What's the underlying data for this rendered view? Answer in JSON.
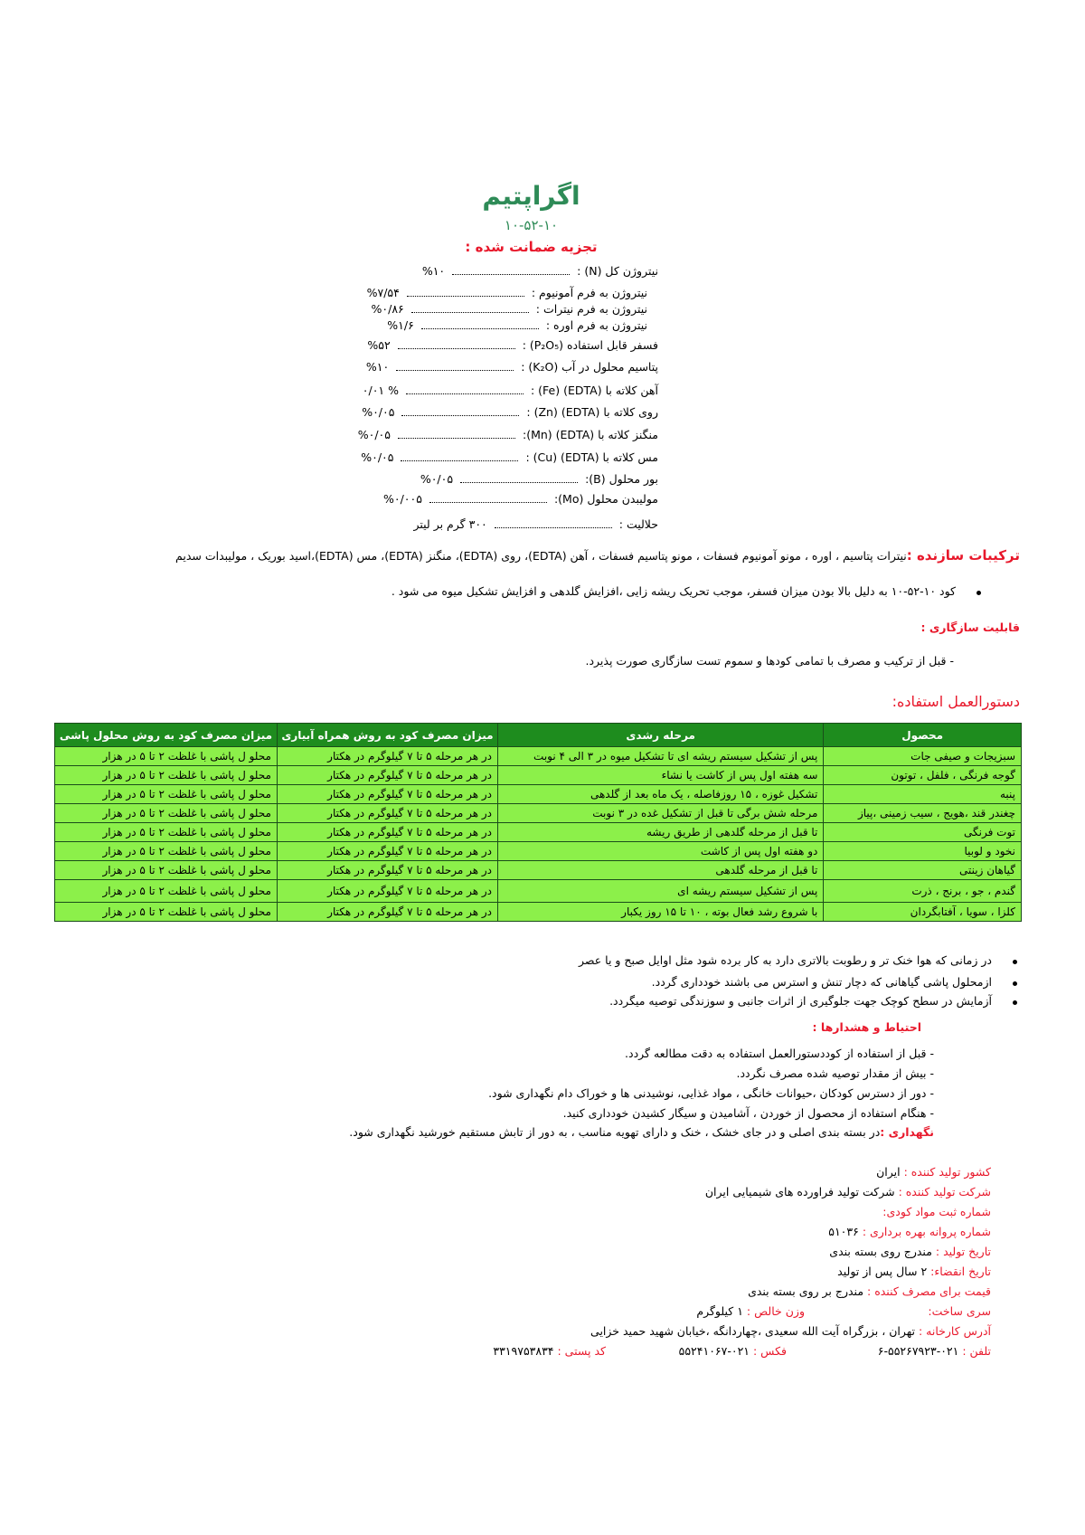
{
  "header": {
    "title": "اگراپتیم",
    "subtitle": "۱۰-۵۲-۱۰",
    "analysis_title": "تجزیه ضمانت شده :"
  },
  "analysis": [
    {
      "label": "نیتروژن کل (N) :",
      "value": "%۱۰"
    },
    {
      "label": "نیتروژن به فرم آمونیوم :",
      "value": "%۷/۵۴"
    },
    {
      "label": "نیتروژن به فرم نیترات :",
      "value": "%۰/۸۶"
    },
    {
      "label": "نیتروژن به فرم اوره :",
      "value": "%۱/۶"
    },
    {
      "label": "فسفر قابل استفاده (P₂O₅) :",
      "value": "%۵۲"
    },
    {
      "label": "پتاسیم محلول در آب (K₂O) :",
      "value": "%۱۰"
    },
    {
      "label": "آهن کلاته با (EDTA) (Fe) :",
      "value": "% ۰/۰۱"
    },
    {
      "label": "روی کلاته با (EDTA) (Zn) :",
      "value": "%۰/۰۵"
    },
    {
      "label": "منگنز کلاته با (EDTA) (Mn):",
      "value": "%۰/۰۵"
    },
    {
      "label": "مس کلاته با (EDTA) (Cu) :",
      "value": "%۰/۰۵"
    },
    {
      "label": "بور محلول (B):",
      "value": "%۰/۰۵"
    },
    {
      "label": "مولیبدن محلول (Mo):",
      "value": "%۰/۰۰۵"
    },
    {
      "label": "حلالیت :",
      "value": "۳۰۰ گرم بر لیتر"
    }
  ],
  "ingredients": {
    "label": "ترکیبات سازنده :",
    "text": "نیترات پتاسیم ، اوره ، مونو آمونیوم فسفات ، مونو پتاسیم فسفات ، آهن (EDTA)، روی (EDTA)، منگنز (EDTA)، مس (EDTA)،اسید بوریک ، مولیبدات سدیم"
  },
  "benefit": "کود ۱۰-۵۲-۱۰ به دلیل بالا بودن میزان فسفر، موجب تحریک ریشه زایی ،افزایش گلدهی و افزایش تشکیل میوه می شود .",
  "compatibility": {
    "title": "قابلیت سازگاری :",
    "text": "-      قبل از ترکیب و مصرف با تمامی کودها و سموم  تست سازگاری صورت پذیرد."
  },
  "instructions_title": "دستورالعمل استفاده:",
  "table": {
    "headers": [
      "محصول",
      "مرحله رشدی",
      "میزان مصرف کود به روش همراه آبیاری",
      "میزان مصرف کود به روش محلول پاشی"
    ],
    "rows": [
      [
        "سبزیجات و صیفی جات",
        "پس از تشکیل سیستم ریشه ای تا تشکیل میوه در ۳ الی ۴ نوبت",
        "در هر مرحله ۵ تا ۷ گیلوگرم در هکتار",
        "محلو ل پاشی با غلظت ۲ تا ۵ در هزار"
      ],
      [
        "گوجه فرنگی ، فلفل ، توتون",
        "سه هفته اول پس از کاشت یا نشاء",
        "در هر مرحله ۵ تا ۷ گیلوگرم در هکتار",
        "محلو ل پاشی با غلظت ۲ تا ۵ در هزار"
      ],
      [
        "پنبه",
        "تشکیل غوزه ، ۱۵ روزفاصله ، یک ماه بعد از گلدهی",
        "در هر مرحله ۵ تا ۷ گیلوگرم در هکتار",
        "محلو ل پاشی با غلظت ۲ تا ۵ در هزار"
      ],
      [
        "چغندر قند ،هویج ، سیب زمینی ،پیاز",
        "مرحله شش برگی تا قبل از تشکیل غده در ۳ نوبت",
        "در هر مرحله ۵ تا ۷ گیلوگرم در هکتار",
        "محلو ل پاشی با غلظت ۲ تا ۵ در هزار"
      ],
      [
        "توت فرنگی",
        "تا قبل از مرحله گلدهی از طریق ریشه",
        "در هر مرحله ۵ تا ۷ گیلوگرم در هکتار",
        "محلو ل پاشی با غلظت ۲ تا ۵ در هزار"
      ],
      [
        "نخود و لوبیا",
        "دو هفته اول پس از کاشت",
        "در هر مرحله ۵ تا ۷ گیلوگرم در هکتار",
        "محلو ل پاشی با غلظت ۲ تا ۵ در هزار"
      ],
      [
        "گیاهان زینتی",
        "تا قبل از مرحله گلدهی",
        "در هر مرحله ۵ تا ۷ گیلوگرم در هکتار",
        "محلو ل پاشی با غلظت ۲ تا ۵ در هزار"
      ],
      [
        "گندم ، جو ، برنج ، ذرت",
        "پس از تشکیل سیستم ریشه ای",
        "در هر مرحله ۵ تا ۷ گیلوگرم در هکتار",
        "محلو ل پاشی با غلظت ۲ تا ۵ در هزار"
      ],
      [
        "کلزا ، سویا ، آفتابگردان",
        "با شروع رشد فعال بوته ، ۱۰ تا ۱۵ روز یکبار",
        "در هر مرحله ۵ تا ۷ گیلوگرم در هکتار",
        "محلو ل پاشی با غلظت ۲ تا ۵ در هزار"
      ]
    ]
  },
  "tips": [
    "در زمانی که هوا خنک تر و رطوبت بالاتری دارد به کار برده شود مثل اوایل صبح و یا عصر",
    "ازمحلول پاشی گیاهانی که دچار تنش و استرس می باشند خودداری گردد.",
    "آزمایش در سطح کوچک جهت جلوگیری از اثرات جانبی و سوزندگی توصیه میگردد."
  ],
  "warnings": {
    "title": "احتیاط و هشدارها :",
    "items": [
      "- قبل از استفاده از کوددستورالعمل استفاده به دقت مطالعه گردد.",
      "- بیش از مقدار توصیه شده مصرف نگردد.",
      "- دور از دسترس کودکان ،حیوانات خانگی ، مواد غذایی، نوشیدنی ها و خوراک دام نگهداری شود.",
      "- هنگام استفاده از محصول از خوردن ، آشامیدن و سیگار کشیدن خودداری کنید."
    ]
  },
  "storage": {
    "label": "نگهداری :",
    "text": "در بسته بندی اصلی و در جای خشک ، خنک و دارای تهویه مناسب ، به دور از تابش مستقیم خورشید نگهداری شود."
  },
  "info": [
    [
      {
        "label": "کشور تولید کننده :",
        "value": "ایران"
      }
    ],
    [
      {
        "label": "شرکت تولید کننده :",
        "value": "شرکت تولید فراورده های شیمیایی ایران"
      }
    ],
    [
      {
        "label": "شماره ثبت مواد کودی:"
      }
    ],
    [
      {
        "label": "شماره پروانه بهره برداری :",
        "value": "۵۱۰۳۶"
      }
    ],
    [
      {
        "label": "تاریخ تولید :",
        "value": "مندرج روی بسته بندی"
      }
    ],
    [
      {
        "label": "تاریخ انقضاء:",
        "value": "۲ سال پس از تولید"
      }
    ],
    [
      {
        "label": "قیمت برای مصرف کننده :",
        "value": "مندرج بر روی بسته بندی"
      }
    ],
    [
      {
        "label": "سری ساخت:"
      },
      {
        "label": "وزن خالص :",
        "value": "۱ کیلوگرم"
      }
    ],
    [
      {
        "label": "آدرس کارخانه :",
        "value": "تهران ، بزرگراه آیت الله سعیدی ،چهاردانگه ،خیابان شهید حمید خزایی"
      }
    ],
    [
      {
        "label": "تلفن :",
        "value": "۰۲۱-۵۵۲۶۷۹۲۳-۶"
      },
      {
        "label": "فکس :",
        "value": "۰۲۱-۵۵۲۴۱۰۶۷"
      },
      {
        "label": "کد پستی :",
        "value": "۳۳۱۹۷۵۳۸۳۴"
      }
    ]
  ]
}
